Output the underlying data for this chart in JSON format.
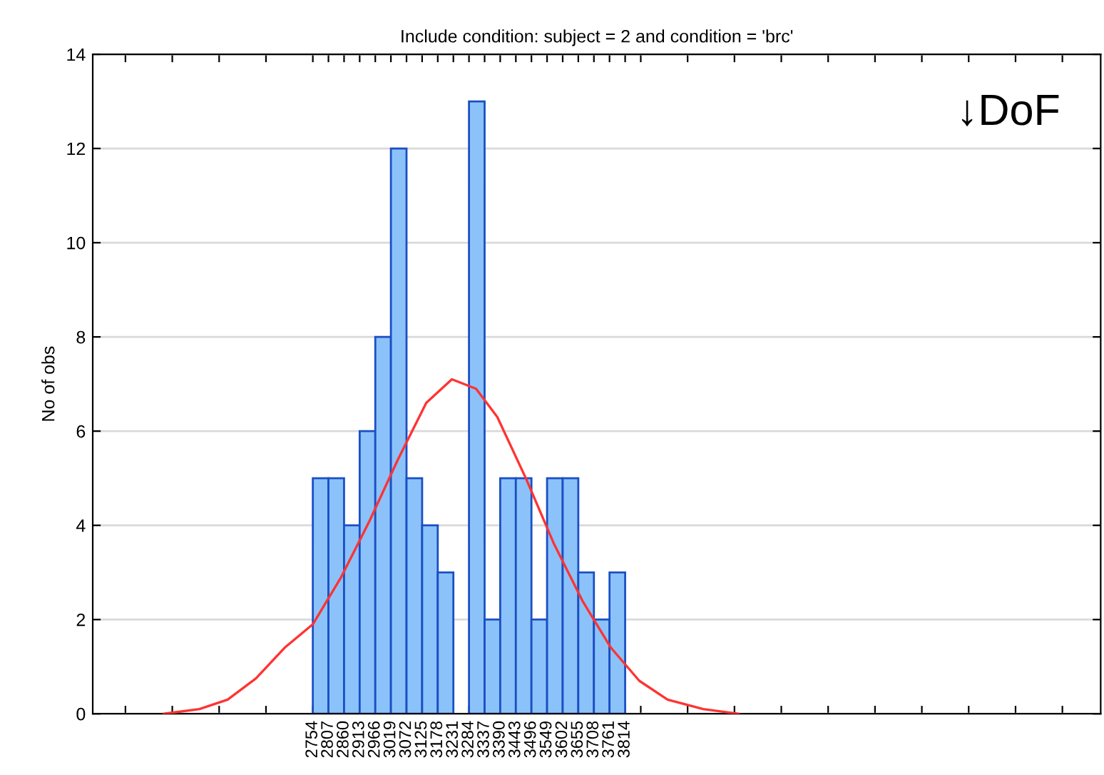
{
  "chart_data": {
    "type": "histogram",
    "title": "Include condition: subject = 2 and condition = 'brc'",
    "ylabel": "No of obs",
    "bins": [
      2754,
      2807,
      2860,
      2913,
      2966,
      3019,
      3072,
      3125,
      3178,
      3231,
      3284,
      3337,
      3390,
      3443,
      3496,
      3549,
      3602,
      3655,
      3708,
      3761,
      3814
    ],
    "values": [
      5,
      5,
      4,
      6,
      8,
      12,
      5,
      4,
      3,
      0,
      13,
      2,
      5,
      5,
      2,
      5,
      5,
      3,
      2,
      3
    ],
    "color": "#8cc2fa",
    "series": [
      {
        "type": "line",
        "color": "#ff3333",
        "x": [
          2248,
          2369,
          2465,
          2561,
          2658,
          2754,
          2850,
          2947,
          3043,
          3139,
          3226,
          3308,
          3380,
          3477,
          3573,
          3669,
          3766,
          3862,
          3958,
          4079,
          4199
        ],
        "values": [
          0.0,
          0.1,
          0.3,
          0.75,
          1.4,
          1.9,
          2.9,
          4.1,
          5.4,
          6.6,
          7.1,
          6.9,
          6.3,
          5.0,
          3.6,
          2.4,
          1.4,
          0.7,
          0.3,
          0.1,
          0.0
        ]
      }
    ],
    "annotations": [
      "↓DoF"
    ],
    "xlim": [
      2007,
      5428
    ],
    "xticks": [
      {
        "value": 2118,
        "label": null
      },
      {
        "value": 2277,
        "label": null
      },
      {
        "value": 2436,
        "label": null
      },
      {
        "value": 2595,
        "label": null
      },
      2754,
      2807,
      2860,
      2913,
      2966,
      3019,
      3072,
      3125,
      3178,
      3231,
      3284,
      3337,
      3390,
      3443,
      3496,
      3549,
      3602,
      3655,
      3708,
      3761,
      3814,
      {
        "value": 3867,
        "label": null
      },
      {
        "value": 4026,
        "label": null
      },
      {
        "value": 4185,
        "label": null
      },
      {
        "value": 4344,
        "label": null
      },
      {
        "value": 4503,
        "label": null
      },
      {
        "value": 4662,
        "label": null
      },
      {
        "value": 4821,
        "label": null
      },
      {
        "value": 4980,
        "label": null
      },
      {
        "value": 5139,
        "label": null
      },
      {
        "value": 5298,
        "label": null
      }
    ],
    "ylim": [
      0,
      14
    ],
    "yticks": [
      0,
      2,
      4,
      6,
      8,
      10,
      12,
      14
    ],
    "grid": "y"
  }
}
